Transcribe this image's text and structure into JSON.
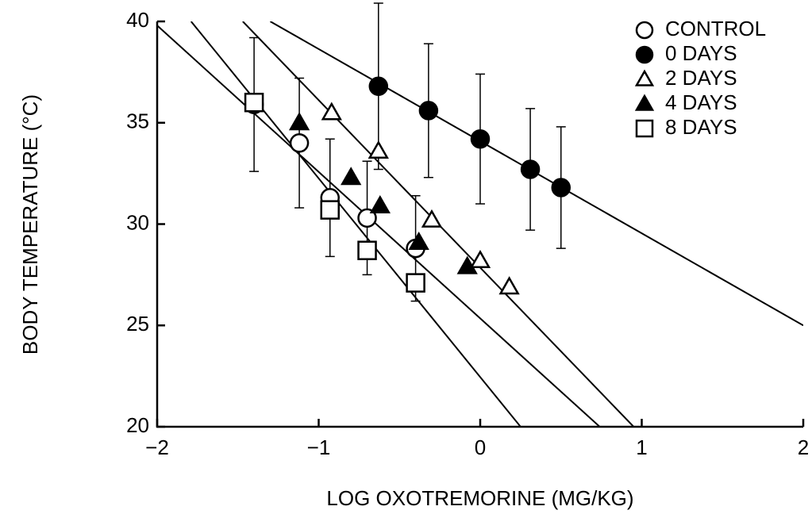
{
  "chart_data": {
    "type": "scatter",
    "xlabel": "LOG OXOTREMORINE (MG/KG)",
    "ylabel": "BODY TEMPERATURE (°C)",
    "xlim": [
      -2,
      2
    ],
    "ylim": [
      20,
      40
    ],
    "xticks": [
      {
        "value": -2,
        "label": "−2"
      },
      {
        "value": -1,
        "label": "−1"
      },
      0,
      1,
      2
    ],
    "yticks": [
      20,
      25,
      30,
      35,
      40
    ],
    "legend": "upper right",
    "series": [
      {
        "name": "CONTROL",
        "color": "#000",
        "marker": "circle",
        "filled": false,
        "x": [
          -1.4,
          -1.12,
          -0.93,
          -0.7,
          -0.4
        ],
        "values": [
          35.9,
          34.0,
          31.3,
          30.3,
          28.8
        ],
        "errors": [
          3.3,
          3.2,
          2.9,
          2.8,
          2.6
        ]
      },
      {
        "name": "0 DAYS",
        "color": "#000",
        "marker": "circle",
        "filled": true,
        "x": [
          -0.63,
          -0.32,
          0,
          0.31,
          0.5
        ],
        "values": [
          36.8,
          35.6,
          34.2,
          32.7,
          31.8
        ],
        "errors": [
          4.1,
          3.3,
          3.2,
          3.0,
          3.0
        ]
      },
      {
        "name": "2 DAYS",
        "color": "#000",
        "marker": "triangle",
        "filled": false,
        "x": [
          -0.92,
          -0.63,
          -0.3,
          0,
          0.18
        ],
        "values": [
          35.5,
          33.6,
          30.2,
          28.2,
          26.9
        ]
      },
      {
        "name": "4 DAYS",
        "color": "#000",
        "marker": "triangle",
        "filled": true,
        "x": [
          -1.12,
          -0.8,
          -0.62,
          -0.38,
          -0.08
        ],
        "values": [
          35.0,
          32.3,
          30.9,
          29.1,
          27.9
        ]
      },
      {
        "name": "8 DAYS",
        "color": "#000",
        "marker": "square",
        "filled": false,
        "x": [
          -1.4,
          -0.93,
          -0.7,
          -0.4
        ],
        "values": [
          36.0,
          30.7,
          28.7,
          27.1
        ]
      }
    ],
    "fit_lines": [
      {
        "x": [
          -2,
          0.74
        ],
        "values": [
          39.8,
          20
        ]
      },
      {
        "x": [
          -1.79,
          0.25
        ],
        "values": [
          40,
          20
        ]
      },
      {
        "x": [
          -1.47,
          0.95
        ],
        "values": [
          40,
          20
        ]
      },
      {
        "x": [
          -1.3,
          2
        ],
        "values": [
          40,
          25
        ]
      }
    ]
  }
}
